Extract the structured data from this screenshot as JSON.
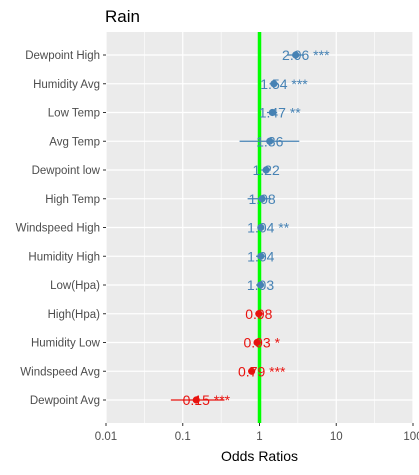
{
  "chart_data": {
    "type": "scatter",
    "title": "Rain",
    "xlabel": "Odds Ratios",
    "ylabel": "",
    "x_scale": "log10",
    "xlim": [
      0.01,
      100
    ],
    "x_ticks": [
      0.01,
      0.1,
      1,
      10,
      100
    ],
    "x_tick_labels": [
      "0.01",
      "0.1",
      "1",
      "10",
      "100"
    ],
    "reference_line": 1,
    "grid": true,
    "points": [
      {
        "label": "Dewpoint High",
        "or": 2.96,
        "ci": [
          2.3,
          3.8
        ],
        "text": "2.96 ***",
        "color": "#4682B4"
      },
      {
        "label": "Humidity Avg",
        "or": 1.54,
        "ci": [
          1.35,
          1.75
        ],
        "text": "1.54 ***",
        "color": "#4682B4"
      },
      {
        "label": "Low Temp",
        "or": 1.47,
        "ci": [
          1.25,
          1.7
        ],
        "text": "1.47 **",
        "color": "#4682B4"
      },
      {
        "label": "Avg Temp",
        "or": 1.36,
        "ci": [
          0.55,
          3.3
        ],
        "text": "1.36",
        "color": "#4682B4"
      },
      {
        "label": "Dewpoint low",
        "or": 1.22,
        "ci": [
          1.05,
          1.4
        ],
        "text": "1.22",
        "color": "#4682B4"
      },
      {
        "label": "High Temp",
        "or": 1.08,
        "ci": [
          0.7,
          1.4
        ],
        "text": "1.08",
        "color": "#4682B4"
      },
      {
        "label": "Windspeed High",
        "or": 1.04,
        "ci": [
          0.95,
          1.12
        ],
        "text": "1.04 **",
        "color": "#4682B4"
      },
      {
        "label": "Humidity High",
        "or": 1.04,
        "ci": [
          0.9,
          1.2
        ],
        "text": "1.04",
        "color": "#4682B4"
      },
      {
        "label": "Low(Hpa)",
        "or": 1.03,
        "ci": [
          0.9,
          1.15
        ],
        "text": "1.03",
        "color": "#4682B4"
      },
      {
        "label": "High(Hpa)",
        "or": 0.98,
        "ci": [
          0.9,
          1.07
        ],
        "text": "0.98",
        "color": "#E8130F"
      },
      {
        "label": "Humidity Low",
        "or": 0.93,
        "ci": [
          0.87,
          0.99
        ],
        "text": "0.93 *",
        "color": "#E8130F"
      },
      {
        "label": "Windspeed Avg",
        "or": 0.79,
        "ci": [
          0.72,
          0.86
        ],
        "text": "0.79 ***",
        "color": "#E8130F"
      },
      {
        "label": "Dewpoint Avg",
        "or": 0.15,
        "ci": [
          0.07,
          0.35
        ],
        "text": "0.15 ***",
        "color": "#E8130F"
      }
    ],
    "colors": {
      "positive": "#4682B4",
      "negative": "#E8130F",
      "reference_line": "#00FF00",
      "panel_background": "#EBEBEB",
      "grid": "#FFFFFF"
    }
  }
}
